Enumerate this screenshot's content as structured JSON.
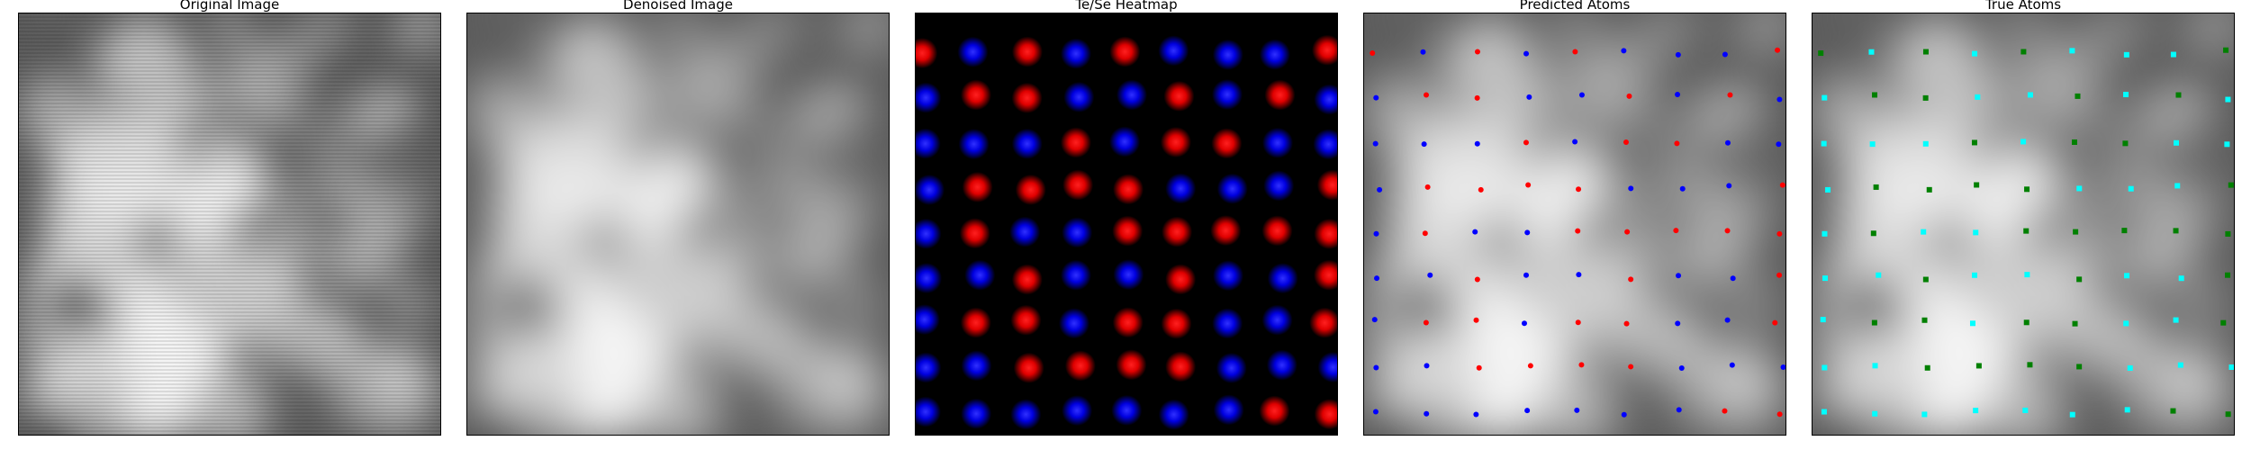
{
  "panels": [
    {
      "id": "original",
      "title": "Original Image"
    },
    {
      "id": "denoised",
      "title": "Denoised Image"
    },
    {
      "id": "heatmap",
      "title": "Te/Se Heatmap"
    },
    {
      "id": "predicted",
      "title": "Predicted Atoms"
    },
    {
      "id": "true",
      "title": "True Atoms"
    }
  ],
  "colors": {
    "te": "#ff0000",
    "se": "#0000ff",
    "true_se": "#00ffff",
    "true_te": "#008000",
    "background": "#000000"
  },
  "lattice": {
    "rows": 9,
    "cols": 9
  }
}
